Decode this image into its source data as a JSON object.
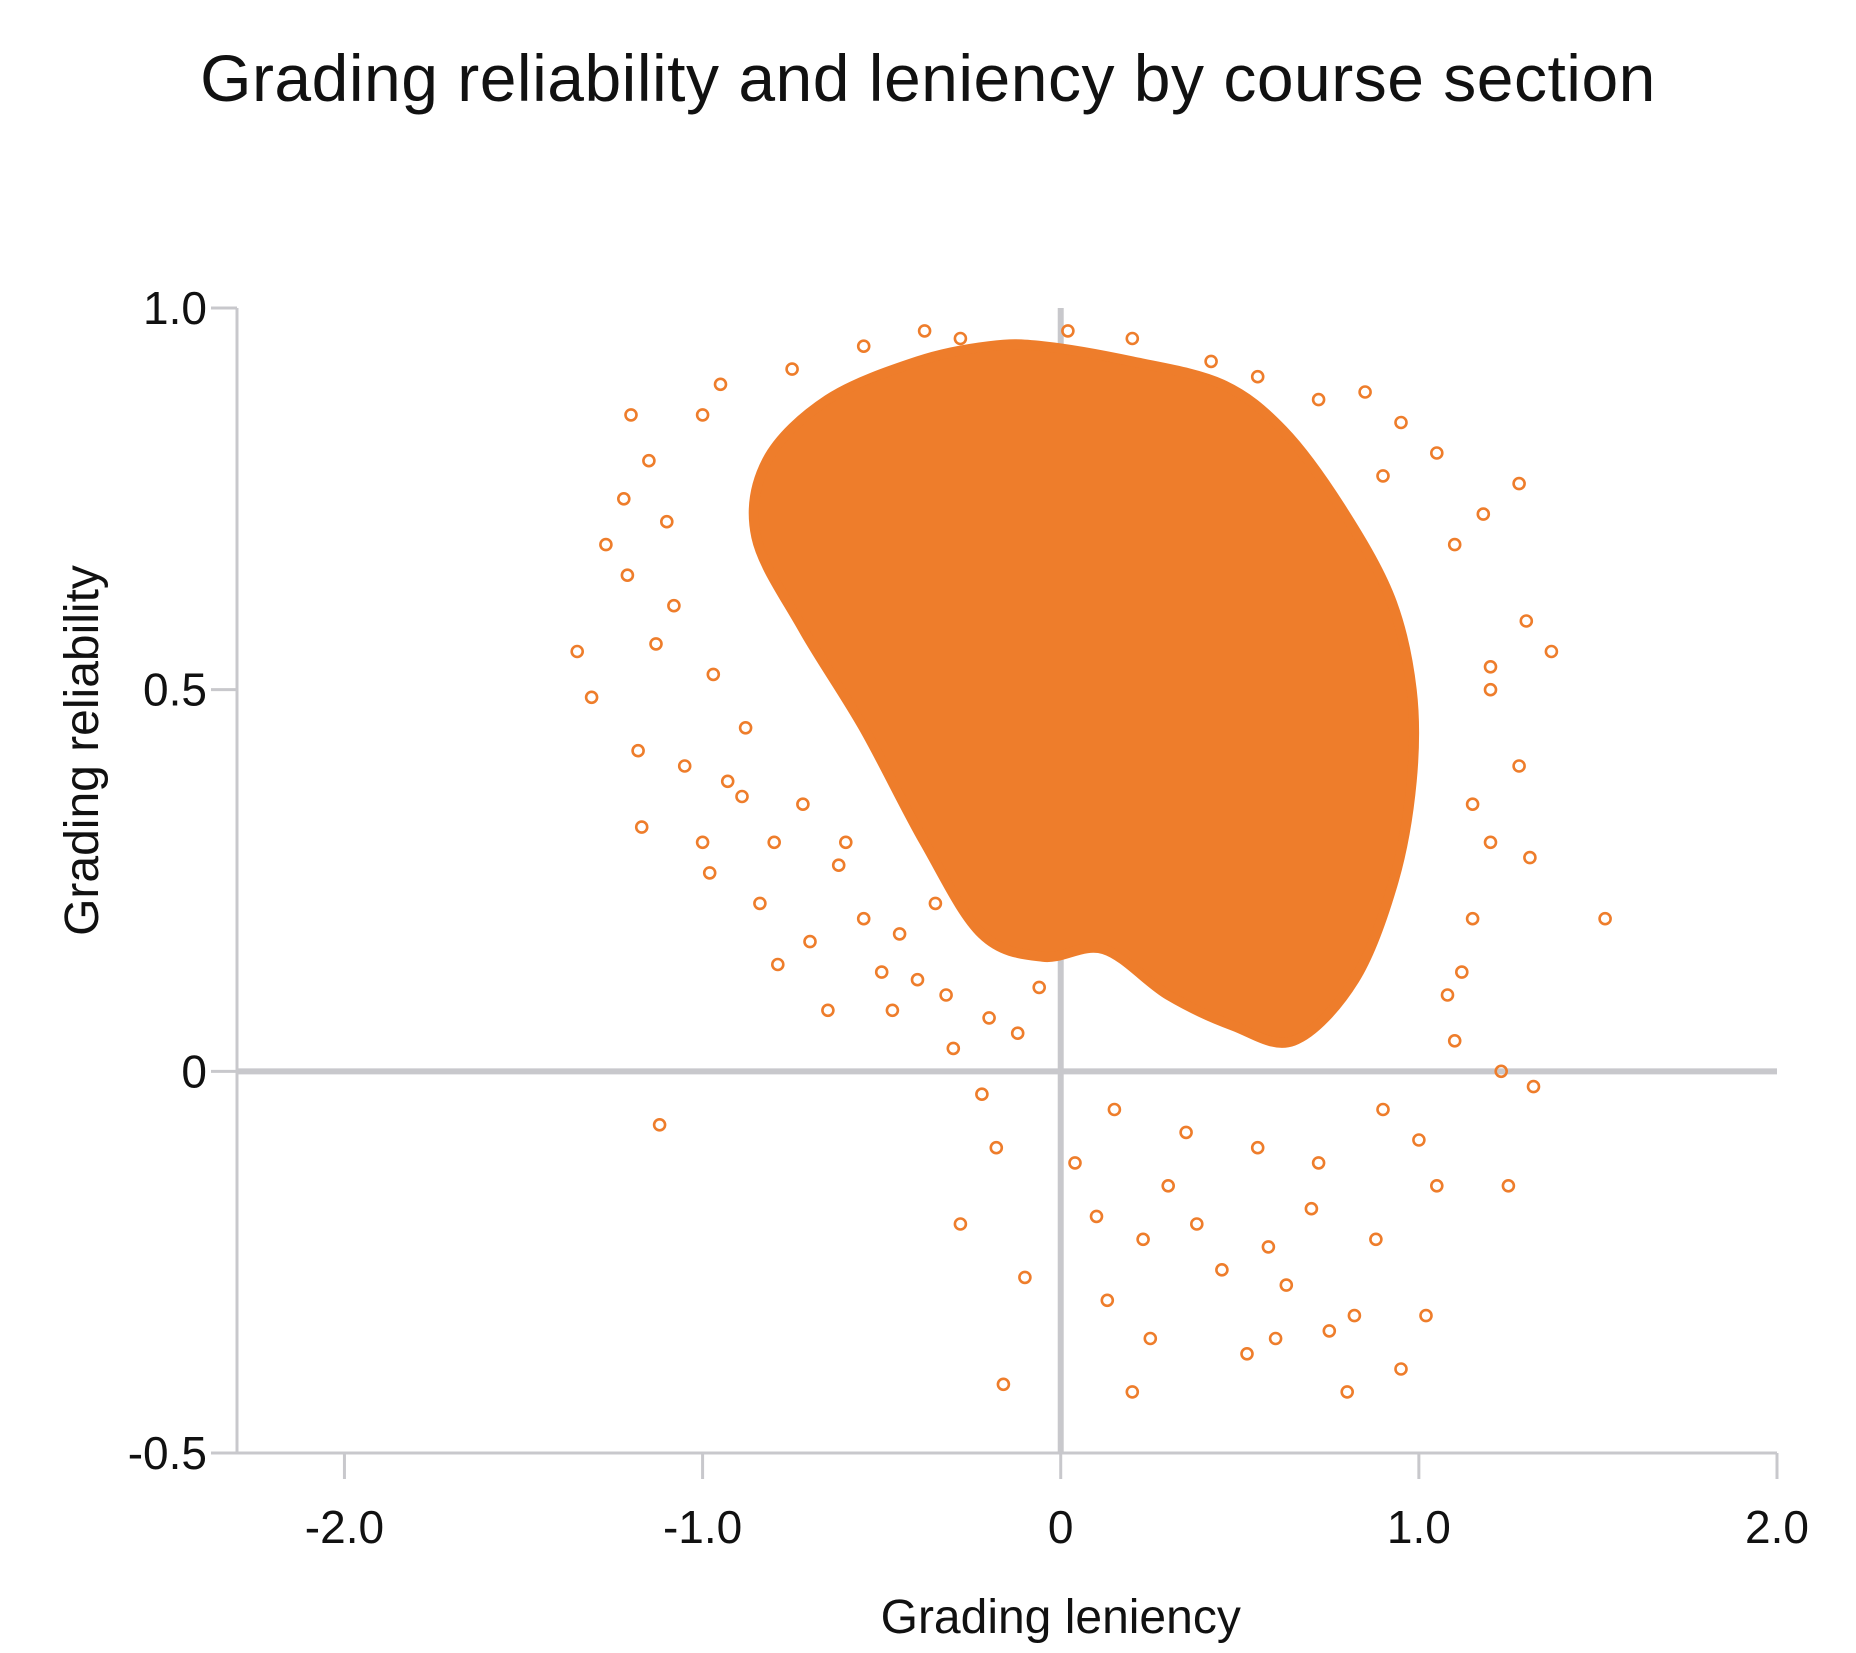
{
  "chart_data": {
    "type": "scatter",
    "title": "Grading reliability and leniency by course section",
    "xlabel": "Grading leniency",
    "ylabel": "Grading reliability",
    "xlim": [
      -2.3,
      2.0
    ],
    "ylim": [
      -0.5,
      1.0
    ],
    "x_ticks": [
      {
        "value": -2.0,
        "label": "-2.0"
      },
      {
        "value": -1.0,
        "label": "-1.0"
      },
      {
        "value": 0,
        "label": "0"
      },
      {
        "value": 1.0,
        "label": "1.0"
      },
      {
        "value": 2.0,
        "label": "2.0"
      }
    ],
    "y_ticks": [
      {
        "value": 1.0,
        "label": "1.0"
      },
      {
        "value": 0.5,
        "label": "0.5"
      },
      {
        "value": 0,
        "label": "0"
      },
      {
        "value": -0.5,
        "label": "-0.5"
      }
    ],
    "reference_lines": {
      "x": 0,
      "y": 0
    },
    "grid": false,
    "legend": "none",
    "colors": {
      "points": "#ee7d2b",
      "axes": "#c8c8cc"
    },
    "dense_region": [
      [
        -0.05,
        0.95
      ],
      [
        0.2,
        0.93
      ],
      [
        0.45,
        0.9
      ],
      [
        0.62,
        0.84
      ],
      [
        0.78,
        0.74
      ],
      [
        0.92,
        0.62
      ],
      [
        0.98,
        0.5
      ],
      [
        0.98,
        0.38
      ],
      [
        0.93,
        0.25
      ],
      [
        0.82,
        0.12
      ],
      [
        0.65,
        0.04
      ],
      [
        0.48,
        0.06
      ],
      [
        0.3,
        0.1
      ],
      [
        0.12,
        0.16
      ],
      [
        -0.05,
        0.15
      ],
      [
        -0.22,
        0.18
      ],
      [
        -0.38,
        0.3
      ],
      [
        -0.55,
        0.45
      ],
      [
        -0.72,
        0.58
      ],
      [
        -0.85,
        0.7
      ],
      [
        -0.82,
        0.8
      ],
      [
        -0.65,
        0.88
      ],
      [
        -0.4,
        0.93
      ],
      [
        -0.2,
        0.95
      ]
    ],
    "points": [
      [
        -1.2,
        0.86
      ],
      [
        -1.27,
        0.69
      ],
      [
        -1.21,
        0.65
      ],
      [
        -1.35,
        0.55
      ],
      [
        -1.31,
        0.49
      ],
      [
        -1.13,
        0.56
      ],
      [
        -1.18,
        0.42
      ],
      [
        -1.17,
        0.32
      ],
      [
        -1.05,
        0.4
      ],
      [
        -1.12,
        -0.07
      ],
      [
        -1.0,
        0.3
      ],
      [
        -0.98,
        0.26
      ],
      [
        -0.93,
        0.38
      ],
      [
        -0.89,
        0.36
      ],
      [
        -0.84,
        0.22
      ],
      [
        -0.8,
        0.3
      ],
      [
        -0.79,
        0.14
      ],
      [
        -0.7,
        0.17
      ],
      [
        -0.65,
        0.08
      ],
      [
        -0.6,
        0.3
      ],
      [
        -0.55,
        0.2
      ],
      [
        -0.5,
        0.13
      ],
      [
        -0.47,
        0.08
      ],
      [
        -0.4,
        0.12
      ],
      [
        -0.35,
        0.22
      ],
      [
        -0.3,
        0.03
      ],
      [
        -0.28,
        -0.2
      ],
      [
        -0.22,
        -0.03
      ],
      [
        -0.2,
        0.07
      ],
      [
        -0.18,
        -0.1
      ],
      [
        -0.16,
        -0.41
      ],
      [
        -0.1,
        -0.27
      ],
      [
        -0.06,
        0.11
      ],
      [
        0.04,
        -0.12
      ],
      [
        0.1,
        -0.19
      ],
      [
        0.13,
        -0.3
      ],
      [
        0.2,
        -0.42
      ],
      [
        0.23,
        -0.22
      ],
      [
        0.25,
        -0.35
      ],
      [
        0.3,
        -0.15
      ],
      [
        0.38,
        -0.2
      ],
      [
        0.45,
        -0.26
      ],
      [
        0.52,
        -0.37
      ],
      [
        0.58,
        -0.23
      ],
      [
        0.6,
        -0.35
      ],
      [
        0.63,
        -0.28
      ],
      [
        0.7,
        -0.18
      ],
      [
        0.75,
        -0.34
      ],
      [
        0.8,
        -0.42
      ],
      [
        0.82,
        -0.32
      ],
      [
        0.88,
        -0.22
      ],
      [
        0.95,
        -0.39
      ],
      [
        1.02,
        -0.32
      ],
      [
        1.05,
        -0.15
      ],
      [
        1.0,
        -0.09
      ],
      [
        1.1,
        0.04
      ],
      [
        1.12,
        0.13
      ],
      [
        1.15,
        0.2
      ],
      [
        1.2,
        0.3
      ],
      [
        1.23,
        0.0
      ],
      [
        1.25,
        -0.15
      ],
      [
        1.28,
        0.4
      ],
      [
        1.31,
        0.28
      ],
      [
        1.32,
        -0.02
      ],
      [
        1.3,
        0.59
      ],
      [
        1.28,
        0.77
      ],
      [
        1.37,
        0.55
      ],
      [
        1.52,
        0.2
      ],
      [
        1.05,
        0.81
      ],
      [
        1.1,
        0.69
      ],
      [
        1.18,
        0.73
      ],
      [
        1.2,
        0.53
      ],
      [
        0.85,
        0.89
      ],
      [
        0.95,
        0.85
      ],
      [
        1.2,
        0.5
      ],
      [
        -1.1,
        0.72
      ],
      [
        -1.15,
        0.8
      ],
      [
        -1.0,
        0.86
      ],
      [
        -0.95,
        0.9
      ],
      [
        -0.75,
        0.92
      ],
      [
        -0.55,
        0.95
      ],
      [
        -0.38,
        0.97
      ],
      [
        -0.28,
        0.96
      ],
      [
        0.02,
        0.97
      ],
      [
        0.2,
        0.96
      ],
      [
        0.42,
        0.93
      ],
      [
        0.55,
        0.91
      ],
      [
        0.72,
        0.88
      ],
      [
        0.9,
        0.78
      ],
      [
        -1.22,
        0.75
      ],
      [
        -1.08,
        0.61
      ],
      [
        -0.97,
        0.52
      ],
      [
        -0.88,
        0.45
      ],
      [
        -0.72,
        0.35
      ],
      [
        -0.62,
        0.27
      ],
      [
        -0.45,
        0.18
      ],
      [
        -0.32,
        0.1
      ],
      [
        -0.12,
        0.05
      ],
      [
        0.15,
        -0.05
      ],
      [
        0.35,
        -0.08
      ],
      [
        0.55,
        -0.1
      ],
      [
        0.72,
        -0.12
      ],
      [
        0.9,
        -0.05
      ],
      [
        1.08,
        0.1
      ],
      [
        1.15,
        0.35
      ]
    ]
  }
}
